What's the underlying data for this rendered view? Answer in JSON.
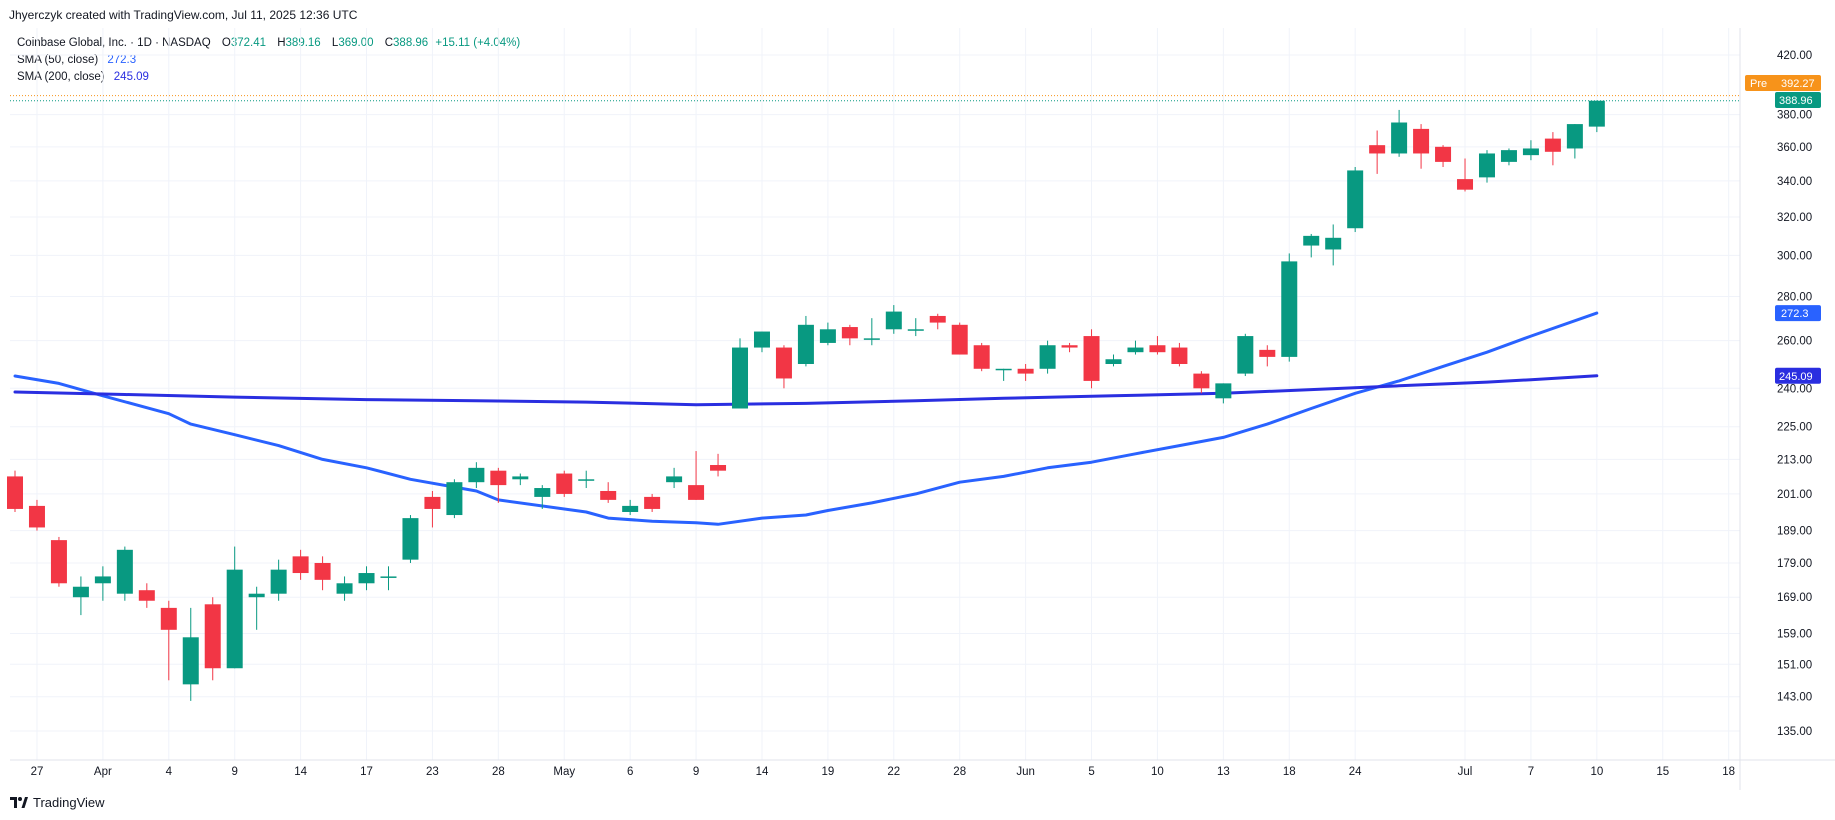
{
  "header": {
    "created_by": "Jhyerczyk created with TradingView.com, Jul 11, 2025 12:36 UTC"
  },
  "legend": {
    "symbol": "Coinbase Global, Inc. · 1D · NASDAQ",
    "o_label": "O",
    "o": "372.41",
    "h_label": "H",
    "h": "389.16",
    "l_label": "L",
    "l": "369.00",
    "c_label": "C",
    "c": "388.96",
    "change": "+15.11 (+4.04%)",
    "sma50_label": "SMA (50, close)",
    "sma50_value": "272.3",
    "sma200_label": "SMA (200, close)",
    "sma200_value": "245.09"
  },
  "badges": {
    "pre_label": "Pre",
    "pre_price": "392.27",
    "last_price": "388.96",
    "sma50": "272.3",
    "sma200": "245.09"
  },
  "footer": {
    "brand": "TradingView"
  },
  "colors": {
    "up": "#089981",
    "down": "#f23645",
    "sma50": "#2962ff",
    "sma200": "#2a2ee0",
    "pre": "#f7931a",
    "grid": "#f0f3fa",
    "axis_text": "#131722"
  },
  "chart_data": {
    "type": "candlestick",
    "title": "Coinbase Global, Inc. · 1D · NASDAQ",
    "y_scale": "log",
    "ylim": [
      128,
      432
    ],
    "y_ticks": [
      "420.00",
      "380.00",
      "360.00",
      "340.00",
      "320.00",
      "300.00",
      "280.00",
      "260.00",
      "240.00",
      "225.00",
      "213.00",
      "201.00",
      "189.00",
      "179.00",
      "169.00",
      "159.00",
      "151.00",
      "143.00",
      "135.00"
    ],
    "x_ticks": [
      {
        "label": "27",
        "date": "2025-03-27"
      },
      {
        "label": "Apr",
        "date": "2025-04-01"
      },
      {
        "label": "4",
        "date": "2025-04-04"
      },
      {
        "label": "9",
        "date": "2025-04-09"
      },
      {
        "label": "14",
        "date": "2025-04-14"
      },
      {
        "label": "17",
        "date": "2025-04-17"
      },
      {
        "label": "23",
        "date": "2025-04-23"
      },
      {
        "label": "28",
        "date": "2025-04-28"
      },
      {
        "label": "May",
        "date": "2025-05-01"
      },
      {
        "label": "6",
        "date": "2025-05-06"
      },
      {
        "label": "9",
        "date": "2025-05-09"
      },
      {
        "label": "14",
        "date": "2025-05-14"
      },
      {
        "label": "19",
        "date": "2025-05-19"
      },
      {
        "label": "22",
        "date": "2025-05-22"
      },
      {
        "label": "28",
        "date": "2025-05-28"
      },
      {
        "label": "Jun",
        "date": "2025-06-02"
      },
      {
        "label": "5",
        "date": "2025-06-05"
      },
      {
        "label": "10",
        "date": "2025-06-10"
      },
      {
        "label": "13",
        "date": "2025-06-13"
      },
      {
        "label": "18",
        "date": "2025-06-18"
      },
      {
        "label": "24",
        "date": "2025-06-24"
      },
      {
        "label": "Jul",
        "date": "2025-07-01"
      },
      {
        "label": "7",
        "date": "2025-07-07"
      },
      {
        "label": "10",
        "date": "2025-07-10"
      },
      {
        "label": "15",
        "date": "2025-07-15"
      },
      {
        "label": "18",
        "date": "2025-07-18"
      }
    ],
    "candles": [
      {
        "date": "2025-03-26",
        "o": 207,
        "h": 209,
        "l": 195,
        "c": 196
      },
      {
        "date": "2025-03-27",
        "o": 197,
        "h": 199,
        "l": 189,
        "c": 190
      },
      {
        "date": "2025-03-28",
        "o": 186,
        "h": 187,
        "l": 172,
        "c": 173
      },
      {
        "date": "2025-03-31",
        "o": 169,
        "h": 175,
        "l": 164,
        "c": 172
      },
      {
        "date": "2025-04-01",
        "o": 173,
        "h": 178,
        "l": 168,
        "c": 175
      },
      {
        "date": "2025-04-02",
        "o": 170,
        "h": 184,
        "l": 168,
        "c": 183
      },
      {
        "date": "2025-04-03",
        "o": 171,
        "h": 173,
        "l": 166,
        "c": 168
      },
      {
        "date": "2025-04-04",
        "o": 166,
        "h": 168,
        "l": 147,
        "c": 160
      },
      {
        "date": "2025-04-07",
        "o": 146,
        "h": 166,
        "l": 142,
        "c": 158
      },
      {
        "date": "2025-04-08",
        "o": 167,
        "h": 169,
        "l": 147,
        "c": 150
      },
      {
        "date": "2025-04-09",
        "o": 150,
        "h": 184,
        "l": 150,
        "c": 177
      },
      {
        "date": "2025-04-10",
        "o": 169,
        "h": 172,
        "l": 160,
        "c": 170
      },
      {
        "date": "2025-04-11",
        "o": 170,
        "h": 180,
        "l": 168,
        "c": 177
      },
      {
        "date": "2025-04-14",
        "o": 181,
        "h": 183,
        "l": 174,
        "c": 176
      },
      {
        "date": "2025-04-15",
        "o": 179,
        "h": 181,
        "l": 171,
        "c": 174
      },
      {
        "date": "2025-04-16",
        "o": 170,
        "h": 175,
        "l": 168,
        "c": 173
      },
      {
        "date": "2025-04-17",
        "o": 173,
        "h": 178,
        "l": 171,
        "c": 176
      },
      {
        "date": "2025-04-21",
        "o": 175,
        "h": 178,
        "l": 171,
        "c": 175
      },
      {
        "date": "2025-04-22",
        "o": 180,
        "h": 194,
        "l": 179,
        "c": 193
      },
      {
        "date": "2025-04-23",
        "o": 200,
        "h": 202,
        "l": 190,
        "c": 196
      },
      {
        "date": "2025-04-24",
        "o": 194,
        "h": 206,
        "l": 193,
        "c": 205
      },
      {
        "date": "2025-04-25",
        "o": 205,
        "h": 212,
        "l": 203,
        "c": 210
      },
      {
        "date": "2025-04-28",
        "o": 209,
        "h": 210,
        "l": 198,
        "c": 204
      },
      {
        "date": "2025-04-29",
        "o": 206,
        "h": 208,
        "l": 204,
        "c": 207
      },
      {
        "date": "2025-04-30",
        "o": 200,
        "h": 204,
        "l": 196,
        "c": 203
      },
      {
        "date": "2025-05-01",
        "o": 208,
        "h": 209,
        "l": 200,
        "c": 201
      },
      {
        "date": "2025-05-02",
        "o": 206,
        "h": 209,
        "l": 203,
        "c": 206
      },
      {
        "date": "2025-05-05",
        "o": 202,
        "h": 205,
        "l": 198,
        "c": 199
      },
      {
        "date": "2025-05-06",
        "o": 195,
        "h": 199,
        "l": 194,
        "c": 197
      },
      {
        "date": "2025-05-07",
        "o": 200,
        "h": 201,
        "l": 195,
        "c": 196
      },
      {
        "date": "2025-05-08",
        "o": 205,
        "h": 210,
        "l": 203,
        "c": 207
      },
      {
        "date": "2025-05-09",
        "o": 204,
        "h": 216,
        "l": 199,
        "c": 199
      },
      {
        "date": "2025-05-12",
        "o": 211,
        "h": 215,
        "l": 207,
        "c": 209
      },
      {
        "date": "2025-05-13",
        "o": 232,
        "h": 261,
        "l": 232,
        "c": 257
      },
      {
        "date": "2025-05-14",
        "o": 257,
        "h": 264,
        "l": 255,
        "c": 264
      },
      {
        "date": "2025-05-15",
        "o": 257,
        "h": 258,
        "l": 240,
        "c": 244
      },
      {
        "date": "2025-05-16",
        "o": 250,
        "h": 271,
        "l": 249,
        "c": 267
      },
      {
        "date": "2025-05-19",
        "o": 259,
        "h": 268,
        "l": 258,
        "c": 265
      },
      {
        "date": "2025-05-20",
        "o": 266,
        "h": 267,
        "l": 258,
        "c": 261
      },
      {
        "date": "2025-05-21",
        "o": 261,
        "h": 270,
        "l": 258,
        "c": 261
      },
      {
        "date": "2025-05-22",
        "o": 265,
        "h": 276,
        "l": 263,
        "c": 273
      },
      {
        "date": "2025-05-23",
        "o": 265,
        "h": 270,
        "l": 262,
        "c": 265
      },
      {
        "date": "2025-05-27",
        "o": 271,
        "h": 272,
        "l": 265,
        "c": 268
      },
      {
        "date": "2025-05-28",
        "o": 267,
        "h": 268,
        "l": 254,
        "c": 254
      },
      {
        "date": "2025-05-29",
        "o": 258,
        "h": 259,
        "l": 247,
        "c": 248
      },
      {
        "date": "2025-05-30",
        "o": 248,
        "h": 248,
        "l": 243,
        "c": 248
      },
      {
        "date": "2025-06-02",
        "o": 248,
        "h": 250,
        "l": 243,
        "c": 246
      },
      {
        "date": "2025-06-03",
        "o": 248,
        "h": 260,
        "l": 246,
        "c": 258
      },
      {
        "date": "2025-06-04",
        "o": 258,
        "h": 259,
        "l": 255,
        "c": 257
      },
      {
        "date": "2025-06-05",
        "o": 262,
        "h": 265,
        "l": 240,
        "c": 243
      },
      {
        "date": "2025-06-06",
        "o": 250,
        "h": 254,
        "l": 249,
        "c": 252
      },
      {
        "date": "2025-06-09",
        "o": 255,
        "h": 260,
        "l": 254,
        "c": 257
      },
      {
        "date": "2025-06-10",
        "o": 258,
        "h": 262,
        "l": 254,
        "c": 255
      },
      {
        "date": "2025-06-11",
        "o": 257,
        "h": 259,
        "l": 249,
        "c": 250
      },
      {
        "date": "2025-06-12",
        "o": 246,
        "h": 247,
        "l": 238,
        "c": 240
      },
      {
        "date": "2025-06-13",
        "o": 236,
        "h": 242,
        "l": 234,
        "c": 242
      },
      {
        "date": "2025-06-16",
        "o": 246,
        "h": 263,
        "l": 245,
        "c": 262
      },
      {
        "date": "2025-06-17",
        "o": 256,
        "h": 258,
        "l": 249,
        "c": 253
      },
      {
        "date": "2025-06-18",
        "o": 253,
        "h": 301,
        "l": 251,
        "c": 297
      },
      {
        "date": "2025-06-20",
        "o": 305,
        "h": 311,
        "l": 299,
        "c": 310
      },
      {
        "date": "2025-06-23",
        "o": 303,
        "h": 316,
        "l": 295,
        "c": 309
      },
      {
        "date": "2025-06-24",
        "o": 314,
        "h": 348,
        "l": 312,
        "c": 346
      },
      {
        "date": "2025-06-25",
        "o": 361,
        "h": 370,
        "l": 344,
        "c": 356
      },
      {
        "date": "2025-06-26",
        "o": 356,
        "h": 383,
        "l": 354,
        "c": 375
      },
      {
        "date": "2025-06-27",
        "o": 371,
        "h": 374,
        "l": 347,
        "c": 356
      },
      {
        "date": "2025-06-30",
        "o": 360,
        "h": 361,
        "l": 348,
        "c": 351
      },
      {
        "date": "2025-07-01",
        "o": 341,
        "h": 353,
        "l": 334,
        "c": 335
      },
      {
        "date": "2025-07-02",
        "o": 342,
        "h": 358,
        "l": 339,
        "c": 356
      },
      {
        "date": "2025-07-03",
        "o": 351,
        "h": 359,
        "l": 349,
        "c": 358
      },
      {
        "date": "2025-07-07",
        "o": 355,
        "h": 364,
        "l": 352,
        "c": 359
      },
      {
        "date": "2025-07-08",
        "o": 365,
        "h": 369,
        "l": 349,
        "c": 357
      },
      {
        "date": "2025-07-09",
        "o": 359,
        "h": 374,
        "l": 353,
        "c": 374
      },
      {
        "date": "2025-07-10",
        "o": 372.41,
        "h": 389.16,
        "l": 369.0,
        "c": 388.96
      }
    ],
    "series": [
      {
        "name": "SMA (50, close)",
        "points": [
          {
            "date": "2025-03-26",
            "value": 245
          },
          {
            "date": "2025-03-28",
            "value": 242
          },
          {
            "date": "2025-04-01",
            "value": 237
          },
          {
            "date": "2025-04-04",
            "value": 230
          },
          {
            "date": "2025-04-07",
            "value": 226
          },
          {
            "date": "2025-04-09",
            "value": 222
          },
          {
            "date": "2025-04-11",
            "value": 218
          },
          {
            "date": "2025-04-15",
            "value": 213
          },
          {
            "date": "2025-04-17",
            "value": 210
          },
          {
            "date": "2025-04-22",
            "value": 206
          },
          {
            "date": "2025-04-25",
            "value": 202
          },
          {
            "date": "2025-04-28",
            "value": 199
          },
          {
            "date": "2025-05-02",
            "value": 195
          },
          {
            "date": "2025-05-05",
            "value": 193
          },
          {
            "date": "2025-05-07",
            "value": 192
          },
          {
            "date": "2025-05-09",
            "value": 191.5
          },
          {
            "date": "2025-05-12",
            "value": 191
          },
          {
            "date": "2025-05-14",
            "value": 193
          },
          {
            "date": "2025-05-16",
            "value": 194
          },
          {
            "date": "2025-05-19",
            "value": 195.5
          },
          {
            "date": "2025-05-21",
            "value": 198
          },
          {
            "date": "2025-05-23",
            "value": 201
          },
          {
            "date": "2025-05-28",
            "value": 205
          },
          {
            "date": "2025-05-30",
            "value": 207
          },
          {
            "date": "2025-06-03",
            "value": 210
          },
          {
            "date": "2025-06-05",
            "value": 212
          },
          {
            "date": "2025-06-09",
            "value": 215
          },
          {
            "date": "2025-06-11",
            "value": 218
          },
          {
            "date": "2025-06-13",
            "value": 221
          },
          {
            "date": "2025-06-17",
            "value": 226
          },
          {
            "date": "2025-06-20",
            "value": 232
          },
          {
            "date": "2025-06-24",
            "value": 238
          },
          {
            "date": "2025-06-26",
            "value": 243
          },
          {
            "date": "2025-06-30",
            "value": 249
          },
          {
            "date": "2025-07-02",
            "value": 255
          },
          {
            "date": "2025-07-07",
            "value": 262
          },
          {
            "date": "2025-07-10",
            "value": 272.3
          }
        ]
      },
      {
        "name": "SMA (200, close)",
        "points": [
          {
            "date": "2025-03-26",
            "value": 238.5
          },
          {
            "date": "2025-04-02",
            "value": 237.5
          },
          {
            "date": "2025-04-09",
            "value": 236.5
          },
          {
            "date": "2025-04-17",
            "value": 235.5
          },
          {
            "date": "2025-04-25",
            "value": 235
          },
          {
            "date": "2025-05-02",
            "value": 234.5
          },
          {
            "date": "2025-05-09",
            "value": 233.5
          },
          {
            "date": "2025-05-16",
            "value": 234
          },
          {
            "date": "2025-05-23",
            "value": 235
          },
          {
            "date": "2025-05-30",
            "value": 236
          },
          {
            "date": "2025-06-06",
            "value": 237
          },
          {
            "date": "2025-06-13",
            "value": 238
          },
          {
            "date": "2025-06-20",
            "value": 239.5
          },
          {
            "date": "2025-06-26",
            "value": 241
          },
          {
            "date": "2025-07-02",
            "value": 242.5
          },
          {
            "date": "2025-07-07",
            "value": 243.5
          },
          {
            "date": "2025-07-10",
            "value": 245.09
          }
        ]
      }
    ],
    "pre_market": 392.27,
    "last_close": 388.96,
    "grid": true
  }
}
